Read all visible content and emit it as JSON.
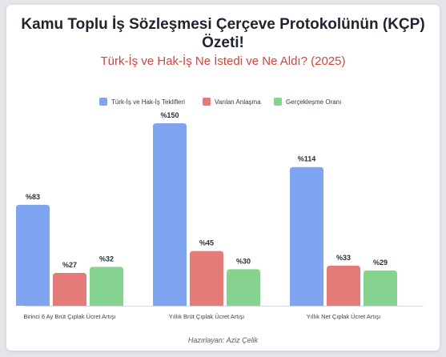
{
  "header": {
    "title_line1": "Kamu Toplu İş Sözleşmesi Çerçeve Protokolünün (KÇP)",
    "title_line2": "Özeti!",
    "subtitle": "Türk-İş ve Hak-İş Ne İstedi ve Ne Aldı? (2025)"
  },
  "footer": {
    "credit": "Hazırlayan: Aziz Çelik"
  },
  "colors": {
    "series1": "#7fa5f1",
    "series2": "#e57b79",
    "series3": "#86d28f"
  },
  "chart_data": {
    "type": "bar",
    "categories": [
      "Birinci 6 Ay Brüt Çıplak Ücret Artışı",
      "Yıllık Brüt Çıplak Ücret Artışı",
      "Yıllık Net Çıplak Ücret Artışı"
    ],
    "series": [
      {
        "name": "Türk-İş ve Hak-İş Teklifleri",
        "values": [
          83,
          150,
          114
        ],
        "labels": [
          "%83",
          "%150",
          "%114"
        ]
      },
      {
        "name": "Varılan Anlaşma",
        "values": [
          27,
          45,
          33
        ],
        "labels": [
          "%27",
          "%45",
          "%33"
        ]
      },
      {
        "name": "Gerçekleşme Oranı",
        "values": [
          32,
          30,
          29
        ],
        "labels": [
          "%32",
          "%30",
          "%29"
        ]
      }
    ],
    "ylim": [
      0,
      150
    ],
    "grid": false,
    "legend_position": "top-center"
  }
}
